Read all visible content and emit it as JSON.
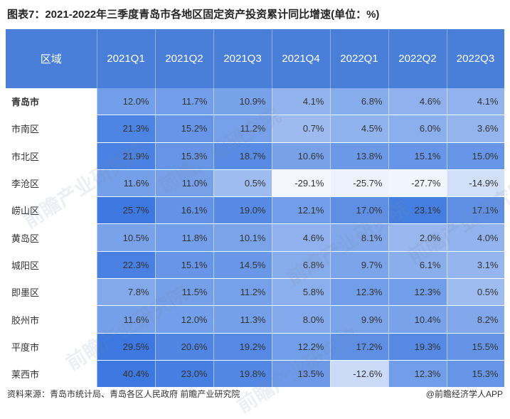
{
  "title": "图表7：2021-2022年三季度青岛市各地区固定资产投资累计同比增速(单位：%)",
  "source": "资料来源：青岛市统计局、青岛各区人民政府 前瞻产业研究院",
  "brand": "@前瞻经济学人APP",
  "watermark": "前瞻产业研究院",
  "chart_data": {
    "type": "table",
    "row_header": "区域",
    "columns": [
      "2021Q1",
      "2021Q2",
      "2021Q3",
      "2021Q4",
      "2022Q1",
      "2022Q2",
      "2022Q3"
    ],
    "rows": [
      {
        "region": "青岛市",
        "bold": true,
        "values": [
          "12.0%",
          "11.7%",
          "10.9%",
          "4.1%",
          "6.8%",
          "4.6%",
          "4.1%"
        ]
      },
      {
        "region": "市南区",
        "values": [
          "21.3%",
          "15.2%",
          "11.2%",
          "0.7%",
          "4.5%",
          "6.0%",
          "3.6%"
        ]
      },
      {
        "region": "市北区",
        "values": [
          "21.9%",
          "15.3%",
          "18.7%",
          "10.6%",
          "13.8%",
          "15.1%",
          "15.0%"
        ]
      },
      {
        "region": "李沧区",
        "values": [
          "11.6%",
          "11.0%",
          "0.5%",
          "-29.1%",
          "-25.7%",
          "-27.7%",
          "-14.9%"
        ]
      },
      {
        "region": "崂山区",
        "values": [
          "25.7%",
          "16.1%",
          "19.0%",
          "12.1%",
          "17.0%",
          "23.1%",
          "17.1%"
        ]
      },
      {
        "region": "黄岛区",
        "values": [
          "10.5%",
          "11.8%",
          "10.1%",
          "4.6%",
          "8.1%",
          "2.0%",
          "4.0%"
        ]
      },
      {
        "region": "城阳区",
        "values": [
          "22.3%",
          "15.1%",
          "14.5%",
          "6.8%",
          "9.7%",
          "6.1%",
          "3.1%"
        ]
      },
      {
        "region": "即墨区",
        "values": [
          "7.8%",
          "11.5%",
          "11.2%",
          "5.8%",
          "12.3%",
          "12.3%",
          "0.5%"
        ]
      },
      {
        "region": "胶州市",
        "values": [
          "11.6%",
          "12.0%",
          "11.3%",
          "8.0%",
          "9.9%",
          "10.4%",
          "8.2%"
        ]
      },
      {
        "region": "平度市",
        "values": [
          "29.5%",
          "20.6%",
          "19.2%",
          "12.2%",
          "17.2%",
          "19.3%",
          "15.5%"
        ]
      },
      {
        "region": "莱西市",
        "values": [
          "40.4%",
          "23.0%",
          "19.8%",
          "13.5%",
          "-12.6%",
          "12.3%",
          "15.3%"
        ]
      }
    ],
    "colors": {
      "header_bg": "#4a7fd9",
      "header_text": "#ffffff",
      "cell_low": "#f4f7fd",
      "cell_high": "#3d78e0"
    }
  }
}
